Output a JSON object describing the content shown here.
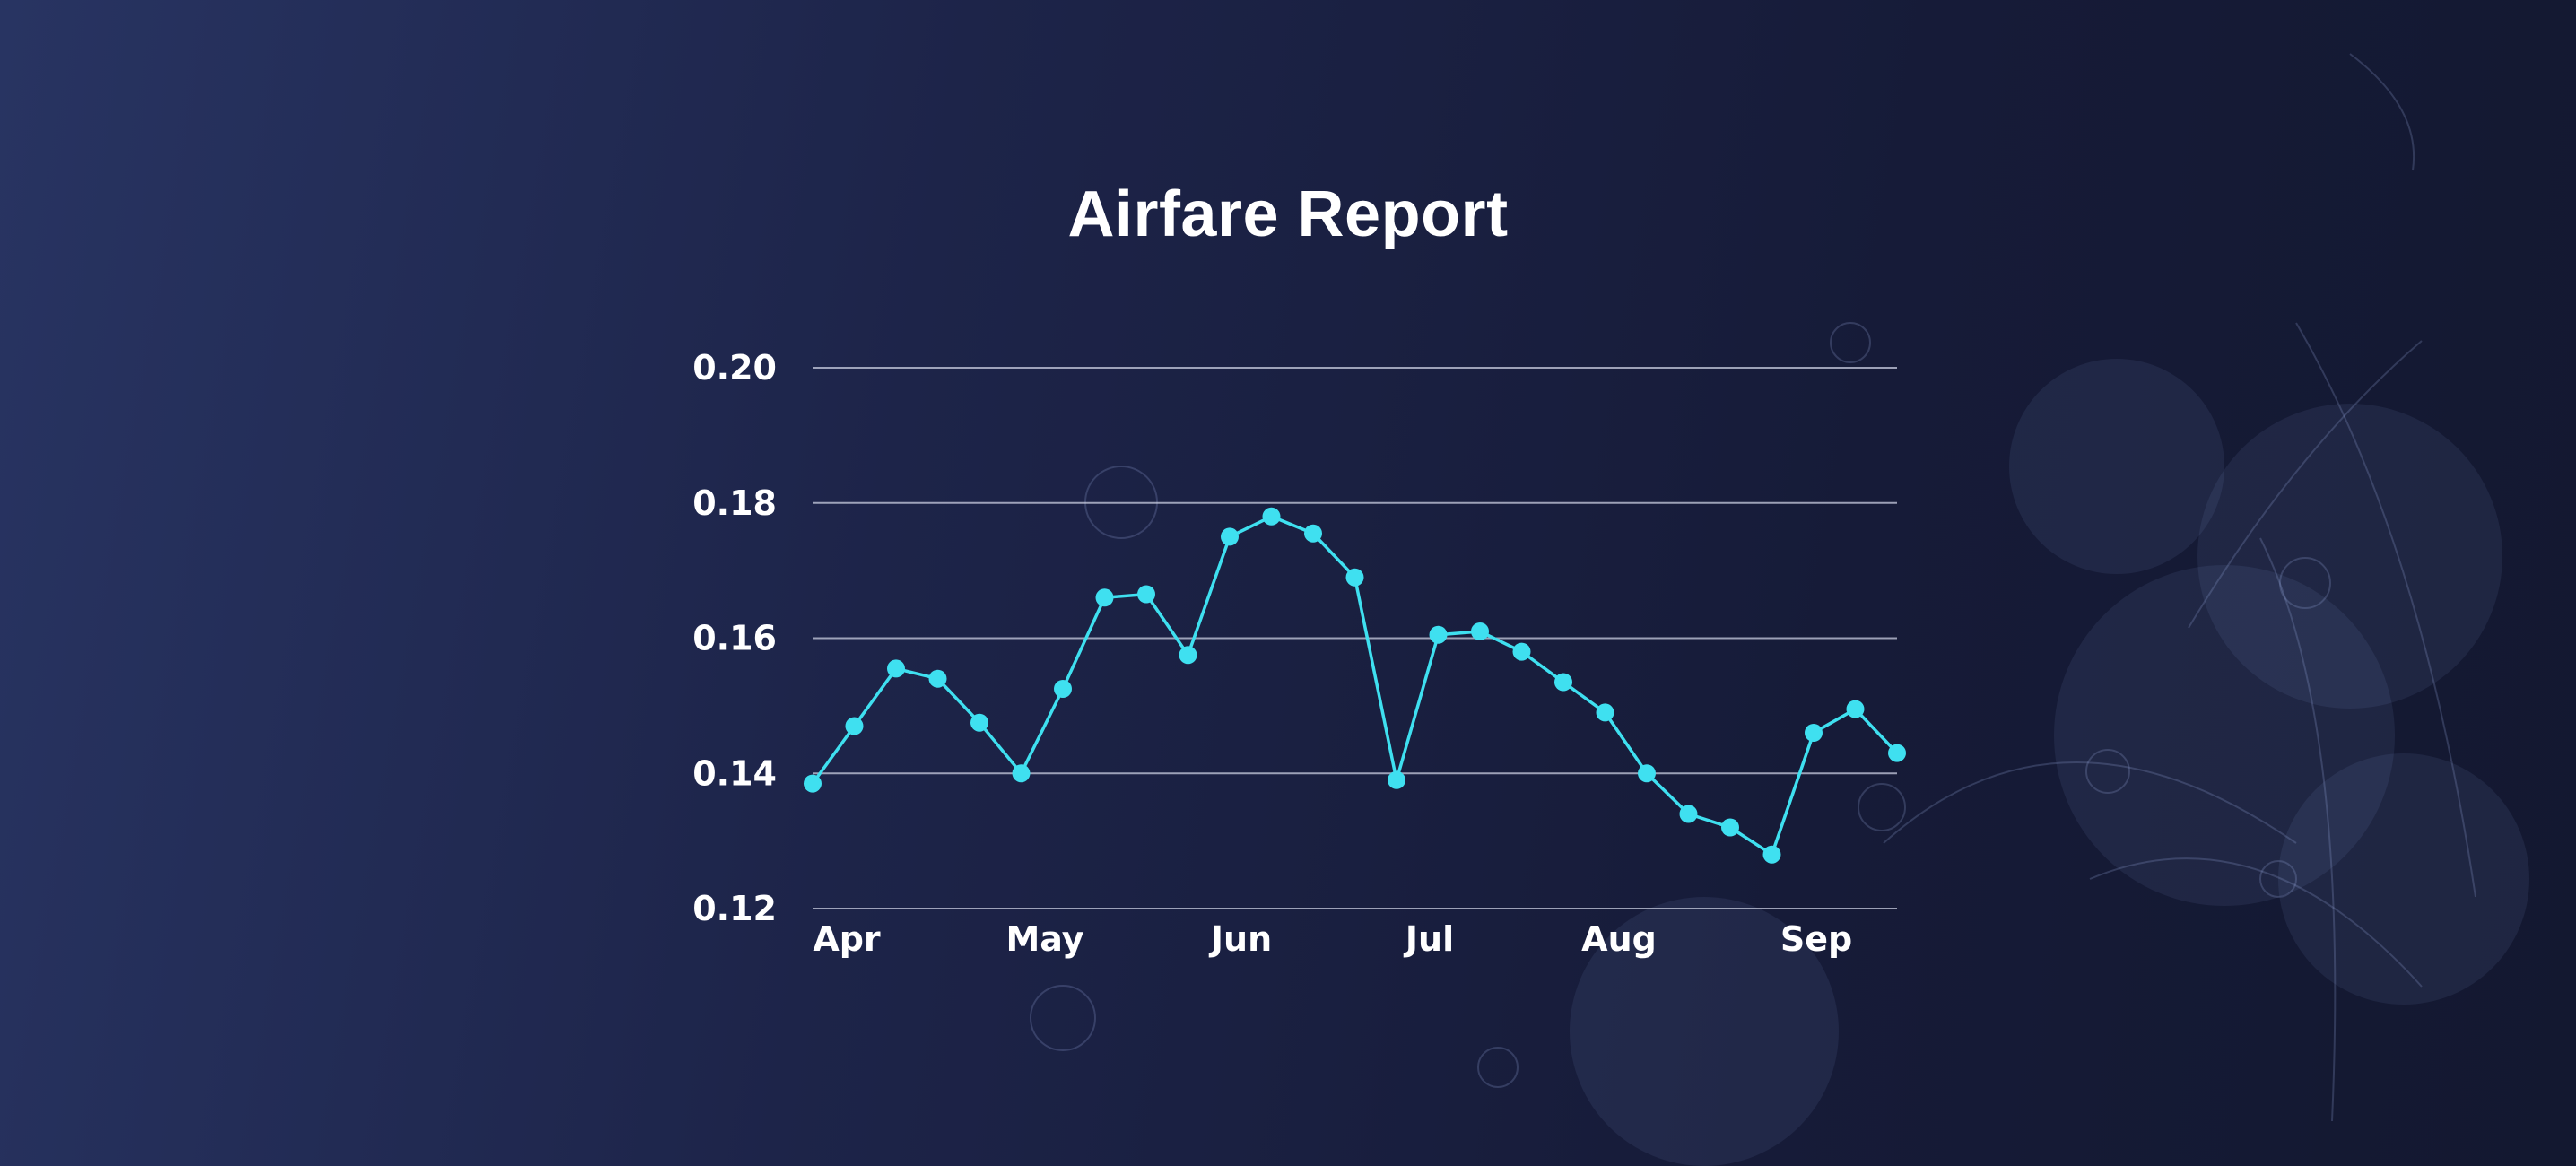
{
  "title": "Airfare Report",
  "colors": {
    "series": "#3fe0f0",
    "grid": "#c9cde0",
    "text": "#ffffff"
  },
  "chart_data": {
    "type": "line",
    "title": "Airfare Report",
    "xlabel": "",
    "ylabel": "",
    "ylim": [
      0.12,
      0.2
    ],
    "y_ticks": [
      "0.12",
      "0.14",
      "0.16",
      "0.18",
      "0.20"
    ],
    "x_tick_labels": [
      "Apr",
      "May",
      "Jun",
      "Jul",
      "Aug",
      "Sep"
    ],
    "grid": "horizontal",
    "legend": "none",
    "series": [
      {
        "values": [
          0.1385,
          0.147,
          0.1555,
          0.154,
          0.1475,
          0.14,
          0.1525,
          0.166,
          0.1665,
          0.1575,
          0.175,
          0.178,
          0.1755,
          0.169,
          0.139,
          0.1605,
          0.161,
          0.158,
          0.1535,
          0.149,
          0.14,
          0.134,
          0.132,
          0.128,
          0.146,
          0.1495,
          0.143
        ]
      }
    ]
  }
}
